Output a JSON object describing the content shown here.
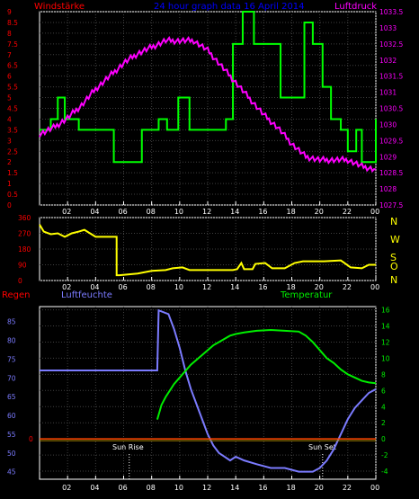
{
  "header": {
    "left_label": "Windstärke",
    "center_title": "24 hour graph data  16 April 2014",
    "right_label": "Luftdruck"
  },
  "colors": {
    "wind": "#00ff00",
    "pressure": "#ff00ff",
    "direction": "#ffff00",
    "humidity": "#7b7bff",
    "temperature": "#00ee00",
    "rain": "#ff0000",
    "left_axis": "#ff0000",
    "right_axis": "#ff00ff",
    "title": "#0000ff",
    "frame": "#ffffff",
    "grid": "#404040"
  },
  "compass": [
    "N",
    "W",
    "S",
    "O",
    "N"
  ],
  "bottom_labels": {
    "rain": "Regen",
    "humidity": "Luftfeuchte",
    "temperature": "Temperatur",
    "sunrise": "Sun Rise",
    "sunset": "Sun Set"
  },
  "chart_data": [
    {
      "type": "line",
      "title": "Windstärke / Luftdruck",
      "x_ticks": [
        "02",
        "04",
        "06",
        "08",
        "10",
        "12",
        "14",
        "16",
        "18",
        "20",
        "22",
        "00"
      ],
      "xlim": [
        0,
        24
      ],
      "left_axis": {
        "label": "Windstärke",
        "ticks": [
          "0",
          "0.5",
          "1",
          "1.5",
          "2",
          "2.5",
          "3",
          "3.5",
          "4",
          "4.5",
          "5",
          "5.5",
          "6",
          "6.5",
          "7",
          "7.5",
          "8",
          "8.5",
          "9"
        ],
        "ylim": [
          0,
          9
        ]
      },
      "right_axis": {
        "label": "Luftdruck",
        "ticks": [
          "1027.5",
          "1028",
          "1028.5",
          "1029",
          "1029.5",
          "1030",
          "1030.5",
          "1031",
          "1031.5",
          "1032",
          "1032.5",
          "1033",
          "1033.5"
        ],
        "ylim": [
          1027.5,
          1033.5
        ]
      },
      "series": [
        {
          "name": "Windstärke",
          "axis": "left",
          "step": true,
          "x": [
            0,
            0.8,
            1.3,
            1.8,
            2.8,
            5.3,
            7.3,
            8.5,
            9.1,
            9.9,
            10.7,
            13.3,
            13.8,
            14.5,
            15.3,
            17.2,
            18.9,
            19.5,
            20.2,
            20.8,
            21.5,
            22,
            22.6,
            23,
            24
          ],
          "values": [
            3.5,
            4,
            5,
            4,
            3.5,
            2,
            3.5,
            4,
            3.5,
            5,
            3.5,
            4,
            7.5,
            9,
            7.5,
            5,
            8.5,
            7.5,
            5.5,
            4,
            3.5,
            2.5,
            3.5,
            2,
            4
          ]
        },
        {
          "name": "Luftdruck",
          "axis": "right",
          "x": [
            0,
            1,
            2,
            3,
            4,
            5,
            6,
            7,
            8,
            9,
            10,
            11,
            12,
            13,
            14,
            15,
            16,
            17,
            18,
            19,
            20,
            21,
            22,
            23,
            24
          ],
          "values": [
            1029.7,
            1029.9,
            1030.2,
            1030.6,
            1031.1,
            1031.5,
            1031.9,
            1032.2,
            1032.4,
            1032.6,
            1032.6,
            1032.6,
            1032.3,
            1031.8,
            1031.3,
            1030.8,
            1030.3,
            1029.9,
            1029.4,
            1029.0,
            1028.9,
            1028.9,
            1028.9,
            1028.7,
            1028.6
          ]
        }
      ]
    },
    {
      "type": "line",
      "title": "Windrichtung",
      "x_ticks": [
        "02",
        "04",
        "06",
        "08",
        "10",
        "12",
        "14",
        "16",
        "18",
        "20",
        "22",
        "00"
      ],
      "xlim": [
        0,
        24
      ],
      "left_axis": {
        "ticks": [
          "0",
          "90",
          "180",
          "270",
          "360"
        ],
        "ylim": [
          0,
          360
        ]
      },
      "series": [
        {
          "name": "Windrichtung",
          "x": [
            0,
            0.3,
            0.8,
            1.3,
            1.8,
            2.3,
            2.8,
            3.2,
            3.6,
            4.0,
            4.5,
            5.5,
            5.5,
            5.7,
            7.0,
            8.0,
            9.0,
            9.5,
            10.2,
            10.7,
            11.2,
            13.8,
            14.1,
            14.4,
            14.6,
            15.2,
            15.4,
            16.1,
            16.6,
            17.0,
            17.5,
            18.2,
            18.8,
            20.3,
            21.5,
            22.2,
            23.0,
            23.5,
            24
          ],
          "values": [
            320,
            280,
            265,
            270,
            250,
            270,
            280,
            290,
            270,
            250,
            250,
            250,
            30,
            30,
            40,
            55,
            60,
            70,
            75,
            60,
            60,
            60,
            65,
            100,
            65,
            65,
            95,
            100,
            70,
            70,
            70,
            100,
            110,
            110,
            115,
            75,
            70,
            90,
            90
          ]
        }
      ]
    },
    {
      "type": "line",
      "title": "Regen / Luftfeuchte / Temperatur",
      "x_ticks": [
        "02",
        "04",
        "06",
        "08",
        "10",
        "12",
        "14",
        "16",
        "18",
        "20",
        "22",
        "00"
      ],
      "xlim": [
        0,
        24
      ],
      "left_axis": {
        "label": "Luftfeuchte",
        "ticks": [
          "45",
          "50",
          "55",
          "60",
          "65",
          "70",
          "75",
          "80",
          "85"
        ],
        "ylim": [
          43,
          89
        ]
      },
      "right_axis": {
        "label": "Temperatur",
        "ticks": [
          "-4",
          "-2",
          "0",
          "2",
          "4",
          "6",
          "8",
          "10",
          "12",
          "14",
          "16"
        ],
        "ylim": [
          -5,
          16.4
        ]
      },
      "rain_axis": {
        "label": "Regen",
        "ticks": [
          "0"
        ],
        "value": 0
      },
      "annotations": [
        {
          "text": "Sun Rise",
          "x": 6.4
        },
        {
          "text": "Sun Set",
          "x": 20.2
        }
      ],
      "series": [
        {
          "name": "Luftfeuchte",
          "axis": "left",
          "x": [
            0,
            8.4,
            8.5,
            9.2,
            9.6,
            10.0,
            10.4,
            10.8,
            11.2,
            11.6,
            12.0,
            12.4,
            12.8,
            13.2,
            13.6,
            14.0,
            14.6,
            15.5,
            16.5,
            17.5,
            18.5,
            19.5,
            20.0,
            20.5,
            21.0,
            21.5,
            22.0,
            22.5,
            23.0,
            23.5,
            24
          ],
          "values": [
            72,
            72,
            88,
            87,
            83,
            78,
            72,
            67,
            63,
            59,
            55,
            52,
            50,
            49,
            48,
            49,
            48,
            47,
            46,
            46,
            45,
            45,
            46,
            48,
            51,
            55,
            59,
            62,
            64,
            66,
            67
          ]
        },
        {
          "name": "Temperatur",
          "axis": "right",
          "x": [
            0,
            8.4,
            8.7,
            9.0,
            9.3,
            9.6,
            10.0,
            10.4,
            10.8,
            11.2,
            11.6,
            12.0,
            12.4,
            12.8,
            13.2,
            13.6,
            14.0,
            14.6,
            15.5,
            16.5,
            17.5,
            18.5,
            19.0,
            19.5,
            20.0,
            20.5,
            21.0,
            21.5,
            22.0,
            22.5,
            23.0,
            23.5,
            24
          ],
          "values": [
            null,
            2.4,
            4.2,
            5.2,
            6.0,
            6.8,
            7.6,
            8.4,
            9.2,
            9.8,
            10.4,
            11.0,
            11.6,
            12.0,
            12.4,
            12.8,
            13.0,
            13.2,
            13.4,
            13.5,
            13.4,
            13.3,
            12.8,
            12.0,
            11.0,
            10.0,
            9.4,
            8.6,
            8.0,
            7.6,
            7.2,
            7.0,
            6.9
          ]
        },
        {
          "name": "Regen",
          "axis": "rain",
          "x": [
            0,
            24
          ],
          "values": [
            0,
            0
          ]
        }
      ]
    }
  ]
}
